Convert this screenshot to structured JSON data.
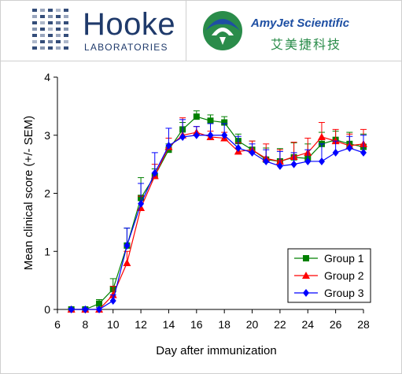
{
  "header": {
    "hooke": {
      "name": "Hooke",
      "sub": "LABORATORIES"
    },
    "amyjet": {
      "name": "AmyJet Scientific",
      "name_cn": "艾美捷科技",
      "colors": {
        "blue": "#1e4fa3",
        "green": "#2a8c4a"
      }
    }
  },
  "chart_data": {
    "type": "line",
    "xlabel": "Day after immunization",
    "ylabel": "Mean clinical score (+/- SEM)",
    "xlim": [
      6,
      28
    ],
    "ylim": [
      0,
      4
    ],
    "xticks": [
      "6",
      "8",
      "10",
      "12",
      "14",
      "16",
      "18",
      "20",
      "22",
      "24",
      "26",
      "28"
    ],
    "yticks": [
      "0",
      "1",
      "2",
      "3",
      "4"
    ],
    "grid": false,
    "legend_position": "bottom-right",
    "x": [
      7,
      8,
      9,
      10,
      11,
      12,
      13,
      14,
      15,
      16,
      17,
      18,
      19,
      20,
      21,
      22,
      23,
      24,
      25,
      26,
      27,
      28
    ],
    "series": [
      {
        "name": "Group 1",
        "color": "#008000",
        "marker": "square",
        "values": [
          0,
          0,
          0.1,
          0.35,
          1.1,
          1.92,
          2.3,
          2.75,
          3.1,
          3.32,
          3.25,
          3.22,
          2.9,
          2.75,
          2.58,
          2.55,
          2.62,
          2.6,
          2.85,
          2.92,
          2.85,
          2.8
        ],
        "sem": [
          0.02,
          0.03,
          0.07,
          0.18,
          0.3,
          0.35,
          0.12,
          0.1,
          0.12,
          0.1,
          0.1,
          0.1,
          0.12,
          0.15,
          0.2,
          0.22,
          0.25,
          0.25,
          0.2,
          0.15,
          0.2,
          0.22
        ]
      },
      {
        "name": "Group 2",
        "color": "#ff0000",
        "marker": "triangle",
        "values": [
          0,
          0,
          0,
          0.25,
          0.8,
          1.75,
          2.3,
          2.8,
          3.0,
          3.05,
          2.97,
          2.95,
          2.72,
          2.75,
          2.6,
          2.55,
          2.63,
          2.7,
          2.97,
          2.9,
          2.82,
          2.85
        ],
        "sem": [
          0.02,
          0.02,
          0.03,
          0.15,
          0.2,
          0.2,
          0.2,
          0.15,
          0.3,
          0.1,
          0.1,
          0.1,
          0.15,
          0.15,
          0.25,
          0.2,
          0.25,
          0.25,
          0.25,
          0.2,
          0.2,
          0.25
        ]
      },
      {
        "name": "Group 3",
        "color": "#0000ff",
        "marker": "diamond",
        "values": [
          0,
          0,
          0,
          0.15,
          1.1,
          1.82,
          2.35,
          2.82,
          2.97,
          3.0,
          3.0,
          3.0,
          2.78,
          2.7,
          2.55,
          2.47,
          2.5,
          2.55,
          2.55,
          2.7,
          2.78,
          2.7
        ],
        "sem": [
          0.02,
          0.02,
          0.03,
          0.1,
          0.3,
          0.35,
          0.35,
          0.3,
          0.3,
          0.15,
          0.2,
          0.2,
          0.2,
          0.15,
          0.2,
          0.25,
          0.2,
          0.2,
          0.3,
          0.2,
          0.2,
          0.3
        ]
      }
    ]
  }
}
